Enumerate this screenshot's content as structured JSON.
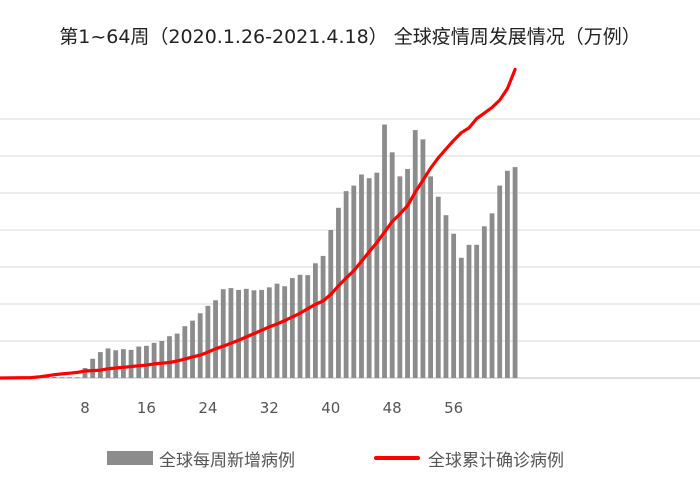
{
  "chart_data": {
    "type": "bar",
    "title": "第1~64周（2020.1.26-2021.4.18） 全球疫情周发展情况（万例）",
    "xlabel": "",
    "ylabel": "",
    "x": [
      1,
      2,
      3,
      4,
      5,
      6,
      7,
      8,
      9,
      10,
      11,
      12,
      13,
      14,
      15,
      16,
      17,
      18,
      19,
      20,
      21,
      22,
      23,
      24,
      25,
      26,
      27,
      28,
      29,
      30,
      31,
      32,
      33,
      34,
      35,
      36,
      37,
      38,
      39,
      40,
      41,
      42,
      43,
      44,
      45,
      46,
      47,
      48,
      49,
      50,
      51,
      52,
      53,
      54,
      55,
      56,
      57,
      58,
      59,
      60,
      61,
      62,
      63,
      64
    ],
    "x_ticks": [
      8,
      16,
      24,
      32,
      40,
      48,
      56
    ],
    "tick_labels": [
      "8",
      "16",
      "24",
      "32",
      "40",
      "48",
      "56"
    ],
    "ylim": [
      0,
      100
    ],
    "gridlines": [
      0,
      10,
      20,
      30,
      40,
      50,
      60,
      70
    ],
    "series": [
      {
        "name": "全球每周新增病例",
        "type": "bar",
        "color": "#8c8c8c",
        "values": [
          0.1,
          0.2,
          0.3,
          0.3,
          0.2,
          0.2,
          0.2,
          2.7,
          5.2,
          7.0,
          8.0,
          7.5,
          7.8,
          7.6,
          8.5,
          8.7,
          9.5,
          10.0,
          11.3,
          12.0,
          14.0,
          15.5,
          17.5,
          19.5,
          21.0,
          24.0,
          24.3,
          23.8,
          24.1,
          23.7,
          23.8,
          24.5,
          25.5,
          24.8,
          27.0,
          27.9,
          27.8,
          31.0,
          33.0,
          40.0,
          46.0,
          50.5,
          52.0,
          55.0,
          54.0,
          55.5,
          68.5,
          61.0,
          54.5,
          56.5,
          67.0,
          64.5,
          54.5,
          49.0,
          44.0,
          39.0,
          32.5,
          36.0,
          36.0,
          41.0,
          44.5,
          52.0,
          56.0,
          57.0
        ]
      },
      {
        "name": "全球累计确诊病例",
        "type": "line",
        "color": "#ff0000",
        "values": [
          0.1,
          0.3,
          0.6,
          0.9,
          1.1,
          1.3,
          1.5,
          1.9,
          2.0,
          2.1,
          2.5,
          2.7,
          2.9,
          3.1,
          3.3,
          3.5,
          3.8,
          4.0,
          4.2,
          4.6,
          5.1,
          5.7,
          6.2,
          7.0,
          7.9,
          8.6,
          9.4,
          10.2,
          11.1,
          12.0,
          12.9,
          13.8,
          14.6,
          15.5,
          16.5,
          17.5,
          18.7,
          19.9,
          20.8,
          22.6,
          24.9,
          27.0,
          29.0,
          31.5,
          34.1,
          36.6,
          39.4,
          42.3,
          44.3,
          46.6,
          50.2,
          53.4,
          56.7,
          59.5,
          61.9,
          64.2,
          66.3,
          67.6,
          70.1,
          71.6,
          73.1,
          75.1,
          78.2,
          83.4
        ]
      }
    ],
    "legend_position": "bottom"
  }
}
